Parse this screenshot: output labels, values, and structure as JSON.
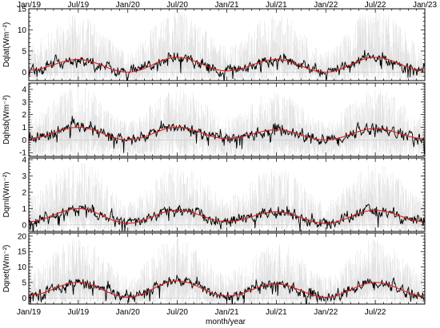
{
  "figure": {
    "xlabel": "month/year",
    "top_axis_labels": [
      "Jan/19",
      "Jul/19",
      "Jan/20",
      "Jul/20",
      "Jan/21",
      "Jul/21",
      "Jan/22",
      "Jul/22",
      "Jan/23"
    ],
    "bottom_axis_labels": [
      "Jan/19",
      "Jul/19",
      "Jan/20",
      "Jul/20",
      "Jan/21",
      "Jul/21",
      "Jan/22",
      "Jul/22"
    ]
  },
  "colors": {
    "envelope": "#dcdcdc",
    "daily": "#000000",
    "smooth": "#e41a1c"
  },
  "chart_data": [
    {
      "type": "line",
      "ylabel": "Dqlat(Wm⁻²)",
      "ylim": [
        -2,
        15
      ],
      "yticks": [
        0,
        5,
        10,
        15
      ],
      "x_range": [
        "2019-01-01",
        "2023-01-01"
      ],
      "seasonal_x": [
        "2019-01",
        "2019-07",
        "2020-01",
        "2020-07",
        "2021-01",
        "2021-07",
        "2022-01",
        "2022-07",
        "2023-01"
      ],
      "series": [
        {
          "values": [
            0.5,
            3.0,
            0.0,
            3.5,
            0.3,
            3.0,
            0.0,
            3.5,
            0.3
          ]
        }
      ],
      "envelope_max": 15
    },
    {
      "type": "line",
      "ylabel": "Dqhsb(Wm⁻²)",
      "ylim": [
        -1.3,
        4.5
      ],
      "yticks": [
        -1,
        0,
        1,
        2,
        3,
        4
      ],
      "x_range": [
        "2019-01-01",
        "2023-01-01"
      ],
      "seasonal_x": [
        "2019-01",
        "2019-07",
        "2020-01",
        "2020-07",
        "2021-01",
        "2021-07",
        "2022-01",
        "2022-07",
        "2023-01"
      ],
      "series": [
        {
          "values": [
            0.1,
            1.0,
            0.0,
            1.0,
            0.1,
            0.8,
            0.0,
            0.9,
            0.1
          ]
        }
      ],
      "envelope_max": 4.3
    },
    {
      "type": "line",
      "ylabel": "Dqrnl(Wm⁻²)",
      "ylim": [
        -0.4,
        4.1
      ],
      "yticks": [
        0,
        1,
        2,
        3,
        4
      ],
      "x_range": [
        "2019-01-01",
        "2023-01-01"
      ],
      "seasonal_x": [
        "2019-01",
        "2019-07",
        "2020-01",
        "2020-07",
        "2021-01",
        "2021-07",
        "2022-01",
        "2022-07",
        "2023-01"
      ],
      "series": [
        {
          "values": [
            0.2,
            1.0,
            0.1,
            0.9,
            0.2,
            0.8,
            0.1,
            0.9,
            0.2
          ]
        }
      ],
      "envelope_max": 4.0
    },
    {
      "type": "line",
      "ylabel": "Dqnet(Wm⁻²)",
      "ylim": [
        -2,
        21
      ],
      "yticks": [
        0,
        5,
        10,
        15,
        20
      ],
      "x_range": [
        "2019-01-01",
        "2023-01-01"
      ],
      "seasonal_x": [
        "2019-01",
        "2019-07",
        "2020-01",
        "2020-07",
        "2021-01",
        "2021-07",
        "2022-01",
        "2022-07",
        "2023-01"
      ],
      "series": [
        {
          "values": [
            0.8,
            5.0,
            0.2,
            5.5,
            0.6,
            4.5,
            0.2,
            5.0,
            0.6
          ]
        }
      ],
      "envelope_max": 20
    }
  ]
}
